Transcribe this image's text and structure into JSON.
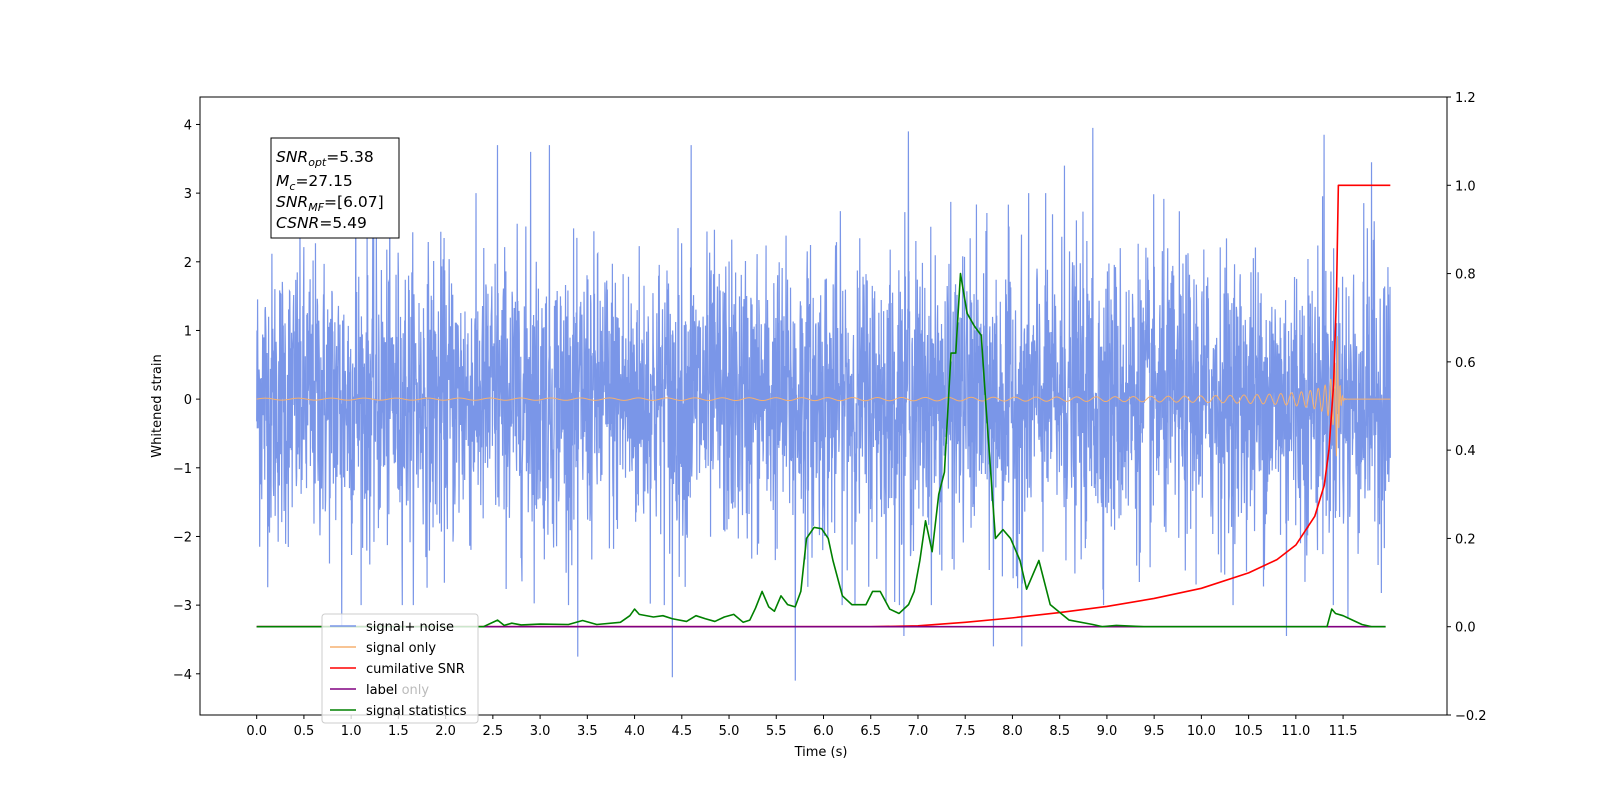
{
  "chart_data": {
    "type": "line",
    "title": "",
    "xlabel": "Time (s)",
    "ylabel": "Whitened strain",
    "y2label": "",
    "xlim": [
      -0.6,
      12.6
    ],
    "ylim": [
      -4.6,
      4.4
    ],
    "y2lim": [
      -0.2,
      1.2
    ],
    "xticks": [
      0.0,
      0.5,
      1.0,
      1.5,
      2.0,
      2.5,
      3.0,
      3.5,
      4.0,
      4.5,
      5.0,
      5.5,
      6.0,
      6.5,
      7.0,
      7.5,
      8.0,
      8.5,
      9.0,
      9.5,
      10.0,
      10.5,
      11.0,
      11.5
    ],
    "xtick_labels": [
      "0.0",
      "0.5",
      "1.0",
      "1.5",
      "2.0",
      "2.5",
      "3.0",
      "3.5",
      "4.0",
      "4.5",
      "5.0",
      "5.5",
      "6.0",
      "6.5",
      "7.0",
      "7.5",
      "8.0",
      "8.5",
      "9.0",
      "9.5",
      "10.0",
      "10.5",
      "11.0",
      "11.5"
    ],
    "yticks": [
      -4,
      -3,
      -2,
      -1,
      0,
      1,
      2,
      3,
      4
    ],
    "ytick_labels": [
      "−4",
      "−3",
      "−2",
      "−1",
      "0",
      "1",
      "2",
      "3",
      "4"
    ],
    "y2ticks": [
      -0.2,
      0.0,
      0.2,
      0.4,
      0.6,
      0.8,
      1.0,
      1.2
    ],
    "y2tick_labels": [
      "−0.2",
      "0.0",
      "0.2",
      "0.4",
      "0.6",
      "0.8",
      "1.0",
      "1.2"
    ],
    "grid": false,
    "legend_position": "bottom-left",
    "series": [
      {
        "name": "signal+ noise",
        "axis": "left",
        "color": "#7a96e8",
        "kind": "noise",
        "x_range": [
          0.0,
          12.0
        ],
        "amplitude": 1.45,
        "peaks": [
          [
            1.05,
            3.2
          ],
          [
            2.55,
            3.7
          ],
          [
            2.9,
            3.6
          ],
          [
            3.1,
            3.7
          ],
          [
            4.6,
            3.7
          ],
          [
            6.9,
            3.9
          ],
          [
            8.55,
            3.4
          ],
          [
            8.85,
            3.95
          ],
          [
            11.3,
            3.85
          ],
          [
            11.8,
            3.45
          ],
          [
            0.9,
            -3.3
          ],
          [
            3.4,
            -3.75
          ],
          [
            4.4,
            -4.05
          ],
          [
            5.7,
            -4.1
          ],
          [
            6.85,
            -3.45
          ],
          [
            7.8,
            -3.6
          ],
          [
            8.1,
            -3.6
          ],
          [
            10.9,
            -3.45
          ],
          [
            11.55,
            -3.2
          ]
        ]
      },
      {
        "name": "signal only",
        "axis": "left",
        "color": "#f5b070",
        "kind": "chirp",
        "x_range": [
          0.0,
          12.0
        ],
        "merger_time": 11.44,
        "max_amplitude": 1.1
      },
      {
        "name": "cumilative SNR",
        "axis": "right",
        "color": "#ff0000",
        "x": [
          0.0,
          6.5,
          7.0,
          7.5,
          8.0,
          8.5,
          9.0,
          9.5,
          10.0,
          10.5,
          10.8,
          11.0,
          11.2,
          11.3,
          11.35,
          11.4,
          11.43,
          11.45,
          12.0
        ],
        "y": [
          0.0,
          0.0,
          0.002,
          0.01,
          0.02,
          0.032,
          0.046,
          0.064,
          0.087,
          0.122,
          0.152,
          0.185,
          0.25,
          0.32,
          0.4,
          0.55,
          0.75,
          1.0,
          1.0
        ]
      },
      {
        "name": "label",
        "axis": "right",
        "color": "#800080",
        "x": [
          0.0,
          11.95
        ],
        "y": [
          0.0,
          0.0
        ]
      },
      {
        "name": "signal statistics",
        "axis": "right",
        "color": "#008000",
        "x": [
          0.0,
          2.4,
          2.55,
          2.62,
          2.7,
          2.8,
          3.0,
          3.3,
          3.45,
          3.6,
          3.85,
          3.95,
          4.0,
          4.05,
          4.2,
          4.3,
          4.4,
          4.55,
          4.65,
          4.75,
          4.85,
          4.95,
          5.05,
          5.15,
          5.22,
          5.28,
          5.35,
          5.42,
          5.48,
          5.55,
          5.62,
          5.7,
          5.76,
          5.82,
          5.9,
          5.98,
          6.05,
          6.1,
          6.2,
          6.3,
          6.38,
          6.45,
          6.52,
          6.6,
          6.7,
          6.8,
          6.9,
          6.96,
          7.02,
          7.08,
          7.15,
          7.22,
          7.28,
          7.35,
          7.4,
          7.45,
          7.52,
          7.6,
          7.67,
          7.72,
          7.82,
          7.9,
          7.98,
          8.08,
          8.15,
          8.2,
          8.28,
          8.4,
          8.6,
          8.85,
          8.95,
          9.1,
          9.4,
          10.0,
          11.2,
          11.33,
          11.38,
          11.42,
          11.5,
          11.6,
          11.7,
          11.8,
          11.95
        ],
        "y": [
          0.0,
          0.0,
          0.015,
          0.003,
          0.008,
          0.004,
          0.006,
          0.005,
          0.014,
          0.005,
          0.01,
          0.025,
          0.04,
          0.028,
          0.022,
          0.025,
          0.018,
          0.012,
          0.025,
          0.018,
          0.012,
          0.022,
          0.028,
          0.01,
          0.015,
          0.042,
          0.08,
          0.045,
          0.035,
          0.07,
          0.05,
          0.045,
          0.08,
          0.2,
          0.225,
          0.222,
          0.2,
          0.15,
          0.07,
          0.05,
          0.05,
          0.05,
          0.08,
          0.08,
          0.04,
          0.03,
          0.05,
          0.08,
          0.15,
          0.24,
          0.17,
          0.3,
          0.35,
          0.62,
          0.62,
          0.8,
          0.71,
          0.68,
          0.66,
          0.5,
          0.2,
          0.22,
          0.2,
          0.15,
          0.085,
          0.11,
          0.15,
          0.05,
          0.015,
          0.005,
          0.0,
          0.003,
          0.0,
          0.0,
          0.0,
          0.0,
          0.04,
          0.03,
          0.025,
          0.015,
          0.005,
          0.0,
          0.0
        ]
      }
    ],
    "legend": [
      {
        "label": "signal+ noise",
        "color": "#7a96e8"
      },
      {
        "label": "signal only",
        "color": "#f5b070"
      },
      {
        "label": "cumilative SNR",
        "color": "#ff0000"
      },
      {
        "label": "label",
        "color": "#800080"
      },
      {
        "label": "signal statistics",
        "color": "#008000"
      }
    ],
    "legend_ghost_text": "label only",
    "annotation": {
      "snr_opt": {
        "main": "SNR",
        "sub": "opt",
        "value": "=5.38"
      },
      "mc": {
        "main": "M",
        "sub": "c",
        "value": "=27.15"
      },
      "snr_mf": {
        "main": "SNR",
        "sub": "MF",
        "value": "=[6.07]"
      },
      "csnr": {
        "main": "CSNR",
        "value": "=5.49"
      }
    }
  }
}
